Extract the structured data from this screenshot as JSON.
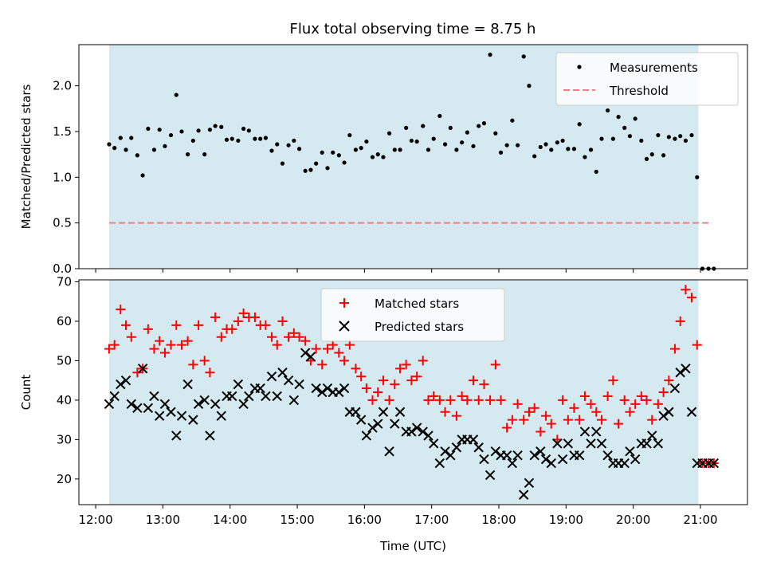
{
  "chart_data": [
    {
      "type": "scatter",
      "title": "Flux total observing time = 8.75 h",
      "xlabel": "",
      "ylabel": "Matched/Predicted stars",
      "xlim": [
        11.75,
        21.7
      ],
      "ylim": [
        0,
        2.45
      ],
      "yticks": [
        0.0,
        0.5,
        1.0,
        1.5,
        2.0
      ],
      "ytick_labels": [
        "0.0",
        "0.5",
        "1.0",
        "1.5",
        "2.0"
      ],
      "xticks": [
        12,
        13,
        14,
        15,
        16,
        17,
        18,
        19,
        20,
        21
      ],
      "shaded_span": [
        12.2,
        20.97
      ],
      "shade_color": "#d4eaf0",
      "legend": [
        "Measurements",
        "Threshold"
      ],
      "threshold": {
        "y": 0.5,
        "x_range": [
          12.2,
          21.17
        ],
        "color": "#f08080"
      },
      "series": [
        {
          "name": "Measurements",
          "color": "#000000",
          "x": [
            12.2,
            12.28,
            12.37,
            12.45,
            12.53,
            12.62,
            12.7,
            12.78,
            12.87,
            12.95,
            13.03,
            13.12,
            13.2,
            13.28,
            13.37,
            13.45,
            13.53,
            13.62,
            13.7,
            13.78,
            13.87,
            13.95,
            14.03,
            14.12,
            14.2,
            14.28,
            14.37,
            14.45,
            14.53,
            14.62,
            14.7,
            14.78,
            14.87,
            14.95,
            15.03,
            15.12,
            15.2,
            15.28,
            15.37,
            15.45,
            15.53,
            15.62,
            15.7,
            15.78,
            15.87,
            15.95,
            16.03,
            16.12,
            16.2,
            16.28,
            16.37,
            16.45,
            16.53,
            16.62,
            16.7,
            16.78,
            16.87,
            16.95,
            17.03,
            17.12,
            17.2,
            17.28,
            17.37,
            17.45,
            17.53,
            17.62,
            17.7,
            17.78,
            17.87,
            17.95,
            18.03,
            18.12,
            18.2,
            18.28,
            18.37,
            18.45,
            18.53,
            18.62,
            18.7,
            18.78,
            18.87,
            18.95,
            19.03,
            19.12,
            19.2,
            19.28,
            19.37,
            19.45,
            19.53,
            19.62,
            19.7,
            19.78,
            19.87,
            19.95,
            20.03,
            20.12,
            20.2,
            20.28,
            20.37,
            20.45,
            20.53,
            20.62,
            20.7,
            20.78,
            20.87,
            20.95,
            21.03,
            21.12,
            21.2
          ],
          "y": [
            1.36,
            1.32,
            1.43,
            1.3,
            1.43,
            1.24,
            1.02,
            1.53,
            1.3,
            1.52,
            1.34,
            1.46,
            1.9,
            1.5,
            1.25,
            1.4,
            1.51,
            1.25,
            1.52,
            1.56,
            1.55,
            1.41,
            1.42,
            1.4,
            1.53,
            1.51,
            1.42,
            1.42,
            1.43,
            1.29,
            1.36,
            1.15,
            1.35,
            1.4,
            1.31,
            1.07,
            1.08,
            1.15,
            1.27,
            1.1,
            1.27,
            1.24,
            1.16,
            1.46,
            1.3,
            1.32,
            1.39,
            1.22,
            1.25,
            1.22,
            1.48,
            1.3,
            1.3,
            1.54,
            1.4,
            1.39,
            1.56,
            1.3,
            1.42,
            1.67,
            1.36,
            1.54,
            1.3,
            1.38,
            1.49,
            1.34,
            1.56,
            1.59,
            2.34,
            1.48,
            1.27,
            1.35,
            1.62,
            1.35,
            2.32,
            2.0,
            1.23,
            1.33,
            1.36,
            1.3,
            1.38,
            1.4,
            1.31,
            1.31,
            1.58,
            1.22,
            1.3,
            1.06,
            1.42,
            1.73,
            1.42,
            1.66,
            1.54,
            1.45,
            1.64,
            1.4,
            1.2,
            1.25,
            1.46,
            1.24,
            1.44,
            1.42,
            1.45,
            1.4,
            1.46,
            1.0,
            0.0,
            0.0,
            0.0
          ]
        }
      ]
    },
    {
      "type": "scatter",
      "title": "",
      "xlabel": "Time (UTC)",
      "ylabel": "Count",
      "xlim": [
        11.75,
        21.7
      ],
      "ylim": [
        13.5,
        70.5
      ],
      "yticks": [
        20,
        30,
        40,
        50,
        60,
        70
      ],
      "ytick_labels": [
        "20",
        "30",
        "40",
        "50",
        "60",
        "70"
      ],
      "xticks": [
        12,
        13,
        14,
        15,
        16,
        17,
        18,
        19,
        20,
        21
      ],
      "xtick_labels": [
        "12:00",
        "13:00",
        "14:00",
        "15:00",
        "16:00",
        "17:00",
        "18:00",
        "19:00",
        "20:00",
        "21:00"
      ],
      "shaded_span": [
        12.2,
        20.97
      ],
      "shade_color": "#d4eaf0",
      "legend": [
        "Matched stars",
        "Predicted stars"
      ],
      "series": [
        {
          "name": "Matched stars",
          "color": "#ff0000",
          "marker": "+",
          "x": [
            12.2,
            12.28,
            12.37,
            12.45,
            12.53,
            12.62,
            12.7,
            12.78,
            12.87,
            12.95,
            13.03,
            13.12,
            13.2,
            13.28,
            13.37,
            13.45,
            13.53,
            13.62,
            13.7,
            13.78,
            13.87,
            13.95,
            14.03,
            14.12,
            14.2,
            14.28,
            14.37,
            14.45,
            14.53,
            14.62,
            14.7,
            14.78,
            14.87,
            14.95,
            15.03,
            15.12,
            15.2,
            15.28,
            15.37,
            15.45,
            15.53,
            15.62,
            15.7,
            15.78,
            15.87,
            15.95,
            16.03,
            16.12,
            16.2,
            16.28,
            16.37,
            16.45,
            16.53,
            16.62,
            16.7,
            16.78,
            16.87,
            16.95,
            17.03,
            17.12,
            17.2,
            17.28,
            17.37,
            17.45,
            17.53,
            17.62,
            17.7,
            17.78,
            17.87,
            17.95,
            18.03,
            18.12,
            18.2,
            18.28,
            18.37,
            18.45,
            18.53,
            18.62,
            18.7,
            18.78,
            18.87,
            18.95,
            19.03,
            19.12,
            19.2,
            19.28,
            19.37,
            19.45,
            19.53,
            19.62,
            19.7,
            19.78,
            19.87,
            19.95,
            20.03,
            20.12,
            20.2,
            20.28,
            20.37,
            20.45,
            20.53,
            20.62,
            20.7,
            20.78,
            20.87,
            20.95,
            21.03,
            21.12,
            21.2
          ],
          "y": [
            53,
            54,
            63,
            59,
            56,
            47,
            48,
            58,
            53,
            55,
            52,
            54,
            59,
            54,
            55,
            49,
            59,
            50,
            47,
            61,
            56,
            58,
            58,
            60,
            62,
            61,
            61,
            59,
            59,
            56,
            54,
            60,
            56,
            57,
            56,
            55,
            50,
            53,
            49,
            53,
            54,
            52,
            50,
            54,
            48,
            46,
            43,
            40,
            42,
            45,
            40,
            44,
            48,
            49,
            45,
            46,
            50,
            40,
            41,
            40,
            37,
            40,
            36,
            41,
            40,
            45,
            40,
            44,
            40,
            49,
            40,
            33,
            35,
            39,
            35,
            37,
            38,
            32,
            36,
            34,
            30,
            40,
            35,
            38,
            35,
            41,
            39,
            37,
            35,
            41,
            45,
            34,
            40,
            37,
            39,
            41,
            40,
            35,
            39,
            42,
            45,
            53,
            60,
            68,
            66,
            54,
            24,
            24,
            24
          ]
        },
        {
          "name": "Predicted stars",
          "color": "#000000",
          "marker": "x",
          "x": [
            12.2,
            12.28,
            12.37,
            12.45,
            12.53,
            12.62,
            12.7,
            12.78,
            12.87,
            12.95,
            13.03,
            13.12,
            13.2,
            13.28,
            13.37,
            13.45,
            13.53,
            13.62,
            13.7,
            13.78,
            13.87,
            13.95,
            14.03,
            14.12,
            14.2,
            14.28,
            14.37,
            14.45,
            14.53,
            14.62,
            14.7,
            14.78,
            14.87,
            14.95,
            15.03,
            15.12,
            15.2,
            15.28,
            15.37,
            15.45,
            15.53,
            15.62,
            15.7,
            15.78,
            15.87,
            15.95,
            16.03,
            16.12,
            16.2,
            16.28,
            16.37,
            16.45,
            16.53,
            16.62,
            16.7,
            16.78,
            16.87,
            16.95,
            17.03,
            17.12,
            17.2,
            17.28,
            17.37,
            17.45,
            17.53,
            17.62,
            17.7,
            17.78,
            17.87,
            17.95,
            18.03,
            18.12,
            18.2,
            18.28,
            18.37,
            18.45,
            18.53,
            18.62,
            18.7,
            18.78,
            18.87,
            18.95,
            19.03,
            19.12,
            19.2,
            19.28,
            19.37,
            19.45,
            19.53,
            19.62,
            19.7,
            19.78,
            19.87,
            19.95,
            20.03,
            20.12,
            20.2,
            20.28,
            20.37,
            20.45,
            20.53,
            20.62,
            20.7,
            20.78,
            20.87,
            20.95,
            21.03,
            21.12,
            21.2
          ],
          "y": [
            39,
            41,
            44,
            45,
            39,
            38,
            48,
            38,
            41,
            36,
            39,
            37,
            31,
            36,
            44,
            35,
            39,
            40,
            31,
            39,
            36,
            41,
            41,
            44,
            39,
            41,
            43,
            43,
            41,
            46,
            41,
            47,
            45,
            40,
            44,
            52,
            51,
            43,
            42,
            43,
            42,
            42,
            43,
            37,
            37,
            35,
            31,
            33,
            34,
            37,
            27,
            34,
            37,
            32,
            32,
            33,
            32,
            31,
            29,
            24,
            27,
            26,
            28,
            30,
            30,
            30,
            28,
            25,
            21,
            27,
            26,
            26,
            24,
            26,
            16,
            19,
            26,
            27,
            25,
            24,
            29,
            25,
            29,
            26,
            26,
            32,
            29,
            32,
            29,
            26,
            24,
            24,
            24,
            27,
            25,
            29,
            29,
            31,
            29,
            36,
            37,
            43,
            47,
            48,
            37,
            24,
            24,
            24,
            24
          ]
        }
      ]
    }
  ]
}
